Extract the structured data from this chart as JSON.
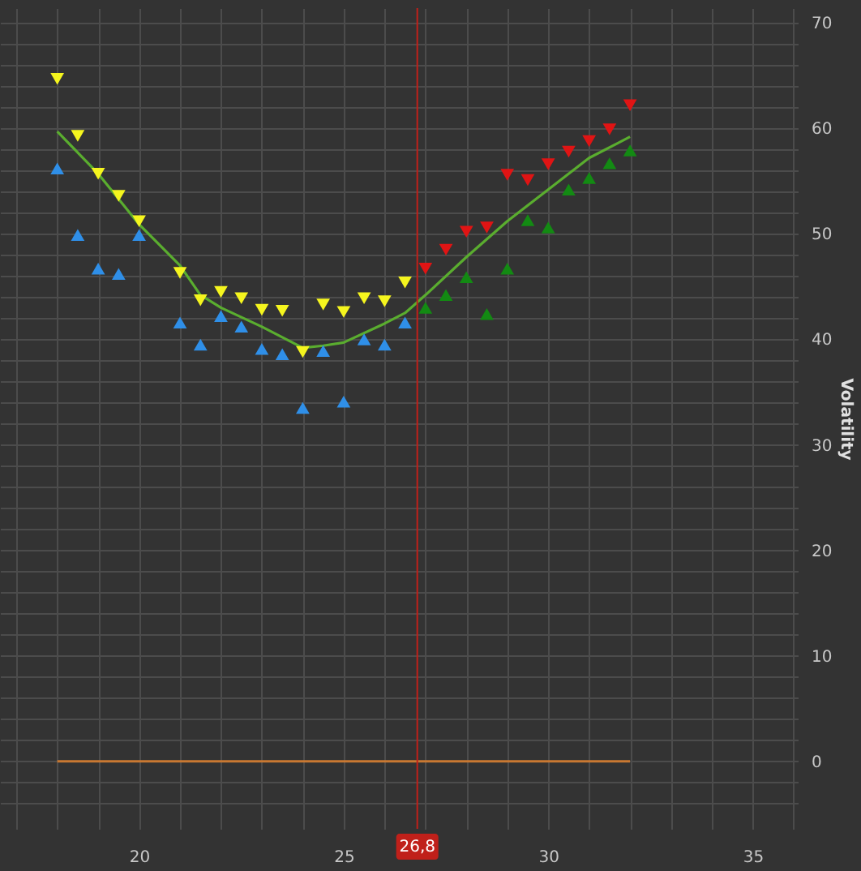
{
  "chart_data": {
    "type": "scatter",
    "ylabel": "Volatility",
    "xlim": [
      16.6,
      36.1
    ],
    "ylim": [
      -6.4,
      71.4
    ],
    "xticks": [
      {
        "value": 17,
        "label": null
      },
      {
        "value": 18,
        "label": null
      },
      {
        "value": 19,
        "label": null
      },
      20,
      {
        "value": 21,
        "label": null
      },
      {
        "value": 22,
        "label": null
      },
      {
        "value": 23,
        "label": null
      },
      {
        "value": 24,
        "label": null
      },
      25,
      {
        "value": 26,
        "label": null
      },
      {
        "value": 27,
        "label": null
      },
      {
        "value": 28,
        "label": null
      },
      {
        "value": 29,
        "label": null
      },
      30,
      {
        "value": 31,
        "label": null
      },
      {
        "value": 32,
        "label": null
      },
      {
        "value": 33,
        "label": null
      },
      {
        "value": 34,
        "label": null
      },
      35,
      {
        "value": 36,
        "label": null
      }
    ],
    "yticks": [
      {
        "value": -4,
        "label": null
      },
      {
        "value": -2,
        "label": null
      },
      0,
      {
        "value": 2,
        "label": null
      },
      {
        "value": 4,
        "label": null
      },
      {
        "value": 6,
        "label": null
      },
      {
        "value": 8,
        "label": null
      },
      10,
      {
        "value": 12,
        "label": null
      },
      {
        "value": 14,
        "label": null
      },
      {
        "value": 16,
        "label": null
      },
      {
        "value": 18,
        "label": null
      },
      20,
      {
        "value": 22,
        "label": null
      },
      {
        "value": 24,
        "label": null
      },
      {
        "value": 26,
        "label": null
      },
      {
        "value": 28,
        "label": null
      },
      30,
      {
        "value": 32,
        "label": null
      },
      {
        "value": 34,
        "label": null
      },
      {
        "value": 36,
        "label": null
      },
      {
        "value": 38,
        "label": null
      },
      40,
      {
        "value": 42,
        "label": null
      },
      {
        "value": 44,
        "label": null
      },
      {
        "value": 46,
        "label": null
      },
      {
        "value": 48,
        "label": null
      },
      50,
      {
        "value": 52,
        "label": null
      },
      {
        "value": 54,
        "label": null
      },
      {
        "value": 56,
        "label": null
      },
      {
        "value": 58,
        "label": null
      },
      60,
      {
        "value": 62,
        "label": null
      },
      {
        "value": 64,
        "label": null
      },
      {
        "value": 66,
        "label": null
      },
      {
        "value": 68,
        "label": null
      },
      70
    ],
    "grid": true,
    "ref_lines": [
      {
        "axis": "x",
        "value": 26.8,
        "label": "26,8",
        "color": "#c0201a"
      }
    ],
    "series": [
      {
        "type": "line",
        "color": "#c87832",
        "x": [
          18,
          32
        ],
        "values": [
          0,
          0
        ]
      },
      {
        "type": "line",
        "color": "#5aad2f",
        "x": [
          18,
          19,
          20,
          21,
          21.5,
          22,
          23,
          24,
          24.5,
          25,
          26,
          26.5,
          27,
          28,
          29,
          30,
          31,
          32
        ],
        "values": [
          59.7,
          55.7,
          50.9,
          47.0,
          44.2,
          43.0,
          41.2,
          39.2,
          39.4,
          39.7,
          41.5,
          42.5,
          44.2,
          47.8,
          51.2,
          54.2,
          57.2,
          59.2
        ]
      },
      {
        "color": "#f5f51e",
        "marker": "triangle-down",
        "x": [
          18,
          18.5,
          19,
          19.5,
          20,
          21,
          21.5,
          22,
          22.5,
          23,
          23.5,
          24,
          24.5,
          25,
          25.5,
          26,
          26.5
        ],
        "values": [
          64.7,
          59.3,
          55.7,
          53.6,
          51.2,
          46.3,
          43.7,
          44.5,
          43.9,
          42.8,
          42.7,
          38.8,
          43.3,
          42.6,
          43.9,
          43.6,
          45.4
        ]
      },
      {
        "color": "#2f8fe8",
        "marker": "triangle",
        "x": [
          18,
          18.5,
          19,
          19.5,
          20,
          21,
          21.5,
          22,
          22.5,
          23,
          23.5,
          24,
          24.5,
          25,
          25.5,
          26,
          26.5
        ],
        "values": [
          56.2,
          49.9,
          46.7,
          46.2,
          49.9,
          41.6,
          39.5,
          42.2,
          41.2,
          39.1,
          38.6,
          33.5,
          38.9,
          34.1,
          40.0,
          39.5,
          41.6
        ]
      },
      {
        "color": "#e01414",
        "marker": "triangle-down",
        "x": [
          27,
          27.5,
          28,
          28.5,
          29,
          29.5,
          30,
          30.5,
          31,
          31.5,
          32
        ],
        "values": [
          46.7,
          48.5,
          50.2,
          50.6,
          55.6,
          55.1,
          56.6,
          57.8,
          58.8,
          59.9,
          62.2
        ]
      },
      {
        "color": "#138a13",
        "marker": "triangle",
        "x": [
          27,
          27.5,
          28,
          28.5,
          29,
          29.5,
          30,
          30.5,
          31,
          31.5,
          32
        ],
        "values": [
          43.0,
          44.2,
          45.9,
          42.4,
          46.7,
          51.3,
          50.6,
          54.2,
          55.3,
          56.7,
          57.9
        ]
      }
    ]
  }
}
